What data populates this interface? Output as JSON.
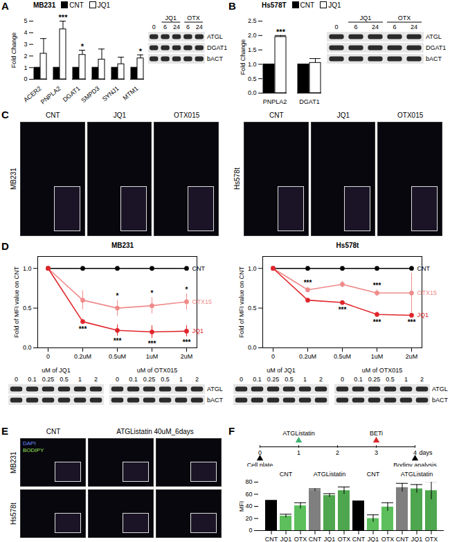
{
  "chart_data": [
    {
      "type": "bar",
      "title": "MB231",
      "categories": [
        "ACER2",
        "PNPLA2",
        "DGAT1",
        "SMPD3",
        "SYNJ1",
        "MTM1"
      ],
      "series": [
        {
          "name": "CNT",
          "color": "#000000",
          "values": [
            1,
            1,
            1,
            1,
            1,
            1
          ]
        },
        {
          "name": "JQ1",
          "color": "#ffffff",
          "values": [
            2.2,
            4.3,
            2.1,
            1.7,
            1.3,
            1.8
          ],
          "errors": [
            1.3,
            0.7,
            0.4,
            0.9,
            0.6,
            0.3
          ]
        }
      ],
      "ylabel": "Fold Change",
      "ylim": [
        0,
        5
      ],
      "yticks": [
        0,
        1,
        2,
        3,
        4,
        5
      ],
      "legend": "top",
      "annotations": [
        {
          "category": "PNPLA2",
          "series": "JQ1",
          "position": "above",
          "text": "***"
        },
        {
          "category": "DGAT1",
          "series": "JQ1",
          "position": "above",
          "text": "*"
        },
        {
          "category": "MTM1",
          "series": "JQ1",
          "position": "above",
          "text": "*"
        }
      ]
    },
    {
      "type": "bar",
      "title": "Hs578T",
      "categories": [
        "PNPLA2",
        "DGAT1"
      ],
      "series": [
        {
          "name": "CNT",
          "color": "#000000",
          "values": [
            1,
            1
          ]
        },
        {
          "name": "JQ1",
          "color": "#ffffff",
          "values": [
            1.95,
            1.05
          ],
          "errors": [
            0.05,
            0.15
          ]
        }
      ],
      "ylabel": "Fold Change",
      "ylim": [
        0,
        2.5
      ],
      "yticks": [
        {
          "value": 0,
          "label": "0.0"
        },
        0.5,
        {
          "value": 1,
          "label": "1.0"
        },
        1.5,
        {
          "value": 2,
          "label": "2.0"
        },
        2.5
      ],
      "legend": "top",
      "annotations": [
        {
          "category": "PNPLA2",
          "series": "JQ1",
          "position": "above",
          "text": "***"
        }
      ]
    },
    {
      "type": "line",
      "title": "MB231",
      "categories": [
        "0",
        "0.2uM",
        "0.5uM",
        "1uM",
        "2uM"
      ],
      "ylabel": "Fold of MFI value on CNT",
      "ylim": [
        0,
        1.15
      ],
      "yticks": [
        {
          "value": 0,
          "label": "0.0"
        },
        0.5,
        {
          "value": 1,
          "label": "1.0"
        }
      ],
      "marker": "circle",
      "series": [
        {
          "name": "CNT",
          "color": "#000000",
          "values": [
            1,
            1,
            1,
            1,
            1
          ]
        },
        {
          "name": "OTX15",
          "color": "#f08a8a",
          "values": [
            1,
            0.6,
            0.5,
            0.53,
            0.58
          ],
          "errors": [
            0,
            0.12,
            0.1,
            0.1,
            0.1
          ]
        },
        {
          "name": "JQ1",
          "color": "#e0262b",
          "values": [
            1,
            0.33,
            0.22,
            0.2,
            0.21
          ],
          "errors": [
            0,
            0.03,
            0.07,
            0.08,
            0.07
          ]
        }
      ],
      "annotations": [
        {
          "category": "0.2uM",
          "series": "JQ1",
          "position": "below",
          "text": "***"
        },
        {
          "category": "0.5uM",
          "series": "OTX15",
          "position": "above",
          "text": "*"
        },
        {
          "category": "1uM",
          "series": "OTX15",
          "position": "above",
          "text": "*"
        },
        {
          "category": "2uM",
          "series": "OTX15",
          "position": "above",
          "text": "*"
        },
        {
          "category": "0.5uM",
          "series": "JQ1",
          "position": "below",
          "text": "***"
        },
        {
          "category": "1uM",
          "series": "JQ1",
          "position": "below",
          "text": "***"
        },
        {
          "category": "2uM",
          "series": "JQ1",
          "position": "below",
          "text": "***"
        }
      ]
    },
    {
      "type": "line",
      "title": "Hs578t",
      "categories": [
        "0",
        "0.2uM",
        "0.5uM",
        "1uM",
        "2uM"
      ],
      "ylabel": "Fold of MFI value on CNT",
      "ylim": [
        0,
        1.15
      ],
      "yticks": [
        {
          "value": 0,
          "label": "0.0"
        },
        0.5,
        {
          "value": 1,
          "label": "1.0"
        }
      ],
      "marker": "circle",
      "series": [
        {
          "name": "CNT",
          "color": "#000000",
          "values": [
            1,
            1,
            1,
            1,
            1
          ]
        },
        {
          "name": "OTX15",
          "color": "#f08a8a",
          "values": [
            1,
            0.73,
            0.8,
            0.69,
            0.69
          ],
          "errors": [
            0,
            0.03,
            0.04,
            0.04,
            0.25
          ]
        },
        {
          "name": "JQ1",
          "color": "#e0262b",
          "values": [
            1,
            0.6,
            0.57,
            0.42,
            0.41
          ],
          "errors": [
            0,
            0.02,
            0.02,
            0.03,
            0.02
          ]
        }
      ],
      "annotations": [
        {
          "category": "0.2uM",
          "series": "OTX15",
          "position": "above",
          "text": "***"
        },
        {
          "category": "0.5uM",
          "series": "JQ1",
          "position": "below",
          "text": "***"
        },
        {
          "category": "1uM",
          "series": "OTX15",
          "position": "above",
          "text": "***"
        },
        {
          "category": "1uM",
          "series": "JQ1",
          "position": "below",
          "text": "***"
        },
        {
          "category": "2uM",
          "series": "JQ1",
          "position": "below",
          "text": "***"
        }
      ]
    },
    {
      "type": "bar",
      "categories": [
        "CNT",
        "JQ1",
        "OTX",
        "CNT",
        "JQ1",
        "OTX",
        "CNT",
        "JQ1",
        "OTX",
        "CNT",
        "JQ1",
        "OTX"
      ],
      "values": [
        50,
        24,
        41,
        67,
        58,
        66,
        49,
        20,
        39,
        71,
        69,
        66
      ],
      "errors": [
        null,
        3,
        5,
        2,
        3,
        6,
        null,
        6,
        7,
        7,
        7,
        15
      ],
      "colors": [
        "#000000",
        "#5cbf5c",
        "#5cbf5c",
        "#7f7f7f",
        "#4ea64e",
        "#4ea64e",
        "#000000",
        "#5cbf5c",
        "#5cbf5c",
        "#7f7f7f",
        "#4ea64e",
        "#4ea64e"
      ],
      "ylabel": "MFI",
      "ylim": [
        0,
        80
      ],
      "yticks": [
        0,
        20,
        40,
        60,
        80
      ],
      "groups": [
        {
          "label": "CNT",
          "count": 3
        },
        {
          "label": "ATGListatin",
          "count": 3
        },
        {
          "label": "CNT",
          "count": 3
        },
        {
          "label": "ATGListatin",
          "count": 3
        }
      ]
    }
  ],
  "panels": {
    "letters": [
      "A",
      "B",
      "C",
      "D",
      "E",
      "F"
    ],
    "blots": {
      "A": {
        "groups": [
          {
            "label": null,
            "count": 1
          },
          {
            "label": "JQ1",
            "count": 2
          },
          {
            "label": "OTX",
            "count": 2
          }
        ],
        "lanes": [
          "0",
          "6",
          "24",
          "6",
          "24"
        ],
        "rows": [
          "ATGL",
          "DGAT1",
          "bACT"
        ]
      },
      "B": {
        "groups": [
          {
            "label": null,
            "count": 1
          },
          {
            "label": "JQ1",
            "count": 2
          },
          {
            "label": "OTX",
            "count": 2
          }
        ],
        "lanes": [
          "0",
          "6",
          "24",
          "6",
          "24"
        ],
        "rows": [
          "ATGL",
          "DGAT1",
          "bACT"
        ]
      },
      "D": [
        {
          "rows": [
            "ATGL",
            "bACT"
          ],
          "blots": [
            {
              "title": "uM of JQ1",
              "lanes": [
                "0",
                "0.1",
                "0.25",
                "0.5",
                "1",
                "2"
              ]
            },
            {
              "title": "uM of OTX015",
              "lanes": [
                "0",
                "0.1",
                "0.25",
                "0.5",
                "1",
                "2"
              ]
            }
          ]
        },
        {
          "rows": [
            "ATGL",
            "bACT"
          ],
          "blots": [
            {
              "title": "uM of JQ1",
              "lanes": [
                "0",
                "0.1",
                "0.25",
                "0.5",
                "1",
                "2"
              ]
            },
            {
              "title": "uM of OTX015",
              "lanes": [
                "0",
                "0.1",
                "0.25",
                "0.5",
                "1",
                "2"
              ]
            }
          ]
        }
      ]
    },
    "images": {
      "C": [
        {
          "row": "MB231",
          "columns": [
            "CNT",
            "JQ1",
            "OTX015"
          ]
        },
        {
          "row": "Hs578t",
          "columns": [
            "CNT",
            "JQ1",
            "OTX015"
          ]
        }
      ],
      "E": {
        "rows": [
          "MB231",
          "Hs578t"
        ],
        "columns": [
          {
            "label": "CNT",
            "count": 1
          },
          {
            "label": "ATGListatin 40uM_6days",
            "count": 2
          }
        ],
        "channels": [
          {
            "name": "DAPI",
            "color": "#6f8cff"
          },
          {
            "name": "BODIPY",
            "color": "#9be35a"
          }
        ]
      }
    },
    "timeline": {
      "days": [
        0,
        1,
        2,
        3,
        4
      ],
      "unit": "days",
      "events": [
        {
          "day": 1,
          "label": "ATGListatin",
          "color": "#3cb371",
          "side": "top"
        },
        {
          "day": 3,
          "label": "BETi",
          "color": "#d62728",
          "side": "top"
        },
        {
          "day": 0,
          "label": "Cell plate",
          "color": "#000000",
          "side": "bottom"
        },
        {
          "day": 4,
          "label": "Bodipy analysis",
          "color": "#000000",
          "side": "bottom"
        }
      ]
    }
  }
}
